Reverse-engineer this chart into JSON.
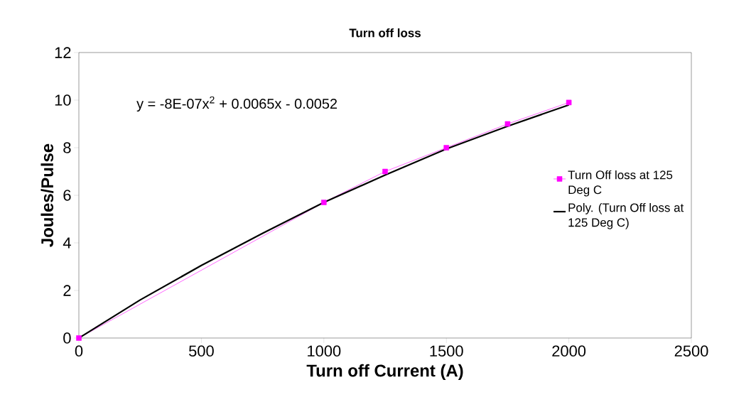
{
  "chart_data": {
    "type": "line",
    "title": "Turn off loss",
    "xlabel": "Turn off Current (A)",
    "ylabel": "Joules/Pulse",
    "annotations": [
      "y = -8E-07x$^{2}$ + 0.0065x - 0.0052"
    ],
    "series": [
      {
        "name": "Turn Off loss at 125 Deg C",
        "color": "#ff00ff",
        "marker": "square",
        "x": [
          0,
          1000,
          1250,
          1500,
          1750,
          2000
        ],
        "values": [
          0,
          5.7,
          7.0,
          8.0,
          9.0,
          9.9
        ]
      },
      {
        "name": "Poly. (Turn Off loss at 125 Deg C)",
        "color": "#000000",
        "marker": "none",
        "x": [
          0,
          250,
          500,
          750,
          1000,
          1250,
          1500,
          1750,
          2000
        ],
        "values": [
          0,
          1.6,
          3.05,
          4.4,
          5.7,
          6.85,
          7.95,
          8.9,
          9.8
        ]
      }
    ],
    "xlim": [
      0,
      2500
    ],
    "xticks": [
      0,
      500,
      1000,
      1500,
      2000,
      2500
    ],
    "ylim": [
      0,
      12
    ],
    "yticks": [
      0,
      2,
      4,
      6,
      8,
      10,
      12
    ],
    "grid": false,
    "legend": "right",
    "line_style": "solid"
  }
}
